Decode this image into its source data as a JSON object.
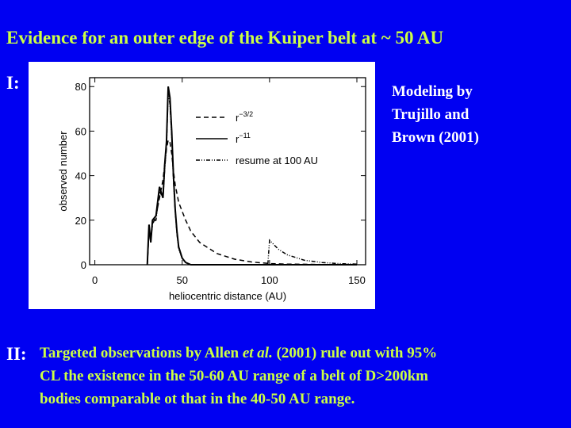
{
  "slide": {
    "title": "Evidence for an outer edge of the Kuiper belt at ~ 50 AU",
    "section_1": "I:",
    "caption_lines": [
      "Modeling by",
      "Trujillo and",
      "Brown (2001)"
    ],
    "section_2": "II:",
    "text_lines": [
      [
        "Targeted observations by Allen ",
        "et al.",
        " (2001) rule out with 95%"
      ],
      [
        "CL the existence in the 50-60 AU range of a belt of D>200km"
      ],
      [
        "bodies comparable ot that in the 40-50 AU range."
      ]
    ]
  },
  "chart_data": {
    "type": "line",
    "x_label": "heliocentric distance (AU)",
    "y_label": "observed number",
    "xlim": [
      -3,
      155
    ],
    "ylim": [
      0,
      84
    ],
    "xticks": [
      0,
      50,
      100,
      150
    ],
    "yticks": [
      0,
      20,
      40,
      60,
      80
    ],
    "legend": "upper right",
    "x": [
      30,
      31,
      32,
      33,
      35,
      37,
      39,
      40,
      41,
      42,
      43,
      44,
      45,
      46,
      47,
      48,
      50,
      52,
      55,
      60,
      70,
      80,
      90,
      99,
      100,
      105,
      110,
      120,
      130,
      140,
      150
    ],
    "series": [
      {
        "name": "r",
        "name_superscript": "−3/2",
        "color": "#000000",
        "dash": "6 4",
        "values": [
          0,
          15,
          12,
          18,
          22,
          30,
          38,
          45,
          52,
          56,
          55,
          50,
          42,
          36,
          32,
          28,
          24,
          20,
          15,
          10,
          5,
          2.5,
          1.2,
          0.6,
          0.5,
          0.4,
          0.3,
          0.2,
          0.1,
          0.1,
          0.1
        ]
      },
      {
        "name": "r",
        "name_superscript": "−11",
        "color": "#000000",
        "dash": "none",
        "values": [
          0,
          18,
          10,
          20,
          22,
          35,
          30,
          45,
          55,
          80,
          75,
          60,
          40,
          25,
          15,
          8,
          3,
          1,
          0,
          0,
          0,
          0,
          0,
          0,
          0,
          0,
          0,
          0,
          0,
          0,
          0
        ]
      },
      {
        "name": "resume at 100 AU",
        "color": "#000000",
        "dash": "5 2 1 2 1 2",
        "values": [
          0,
          16,
          10,
          19,
          20,
          33,
          30,
          43,
          53,
          78,
          72,
          58,
          38,
          24,
          14,
          7,
          3,
          1,
          0,
          0,
          0,
          0,
          0,
          0,
          11,
          7,
          4.5,
          2,
          1,
          0.5,
          0.3
        ]
      }
    ]
  }
}
